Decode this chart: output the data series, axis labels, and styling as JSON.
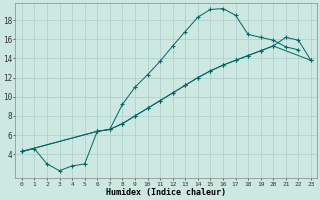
{
  "xlabel": "Humidex (Indice chaleur)",
  "background_color": "#cce8e0",
  "grid_color": "#aacccc",
  "line_color": "#006666",
  "xlim": [
    -0.5,
    23.5
  ],
  "ylim": [
    1.5,
    19.8
  ],
  "xticks": [
    0,
    1,
    2,
    3,
    4,
    5,
    6,
    7,
    8,
    9,
    10,
    11,
    12,
    13,
    14,
    15,
    16,
    17,
    18,
    19,
    20,
    21,
    22,
    23
  ],
  "yticks": [
    4,
    6,
    8,
    10,
    12,
    14,
    16,
    18
  ],
  "curve1_x": [
    0,
    1,
    2,
    3,
    4,
    5,
    6,
    7,
    8,
    9,
    10,
    11,
    12,
    13,
    14,
    15,
    16,
    17,
    18,
    19,
    20,
    21,
    22
  ],
  "curve1_y": [
    4.3,
    4.6,
    3.0,
    2.3,
    2.8,
    3.0,
    6.4,
    6.6,
    9.2,
    11.0,
    12.3,
    13.7,
    15.3,
    16.8,
    18.3,
    19.1,
    19.2,
    18.5,
    16.5,
    16.2,
    15.9,
    15.2,
    14.9
  ],
  "curve2_x": [
    0,
    6,
    7,
    8,
    9,
    10,
    11,
    12,
    13,
    14,
    15,
    16,
    17,
    18,
    19,
    20,
    23
  ],
  "curve2_y": [
    4.3,
    6.4,
    6.6,
    7.2,
    8.0,
    8.8,
    9.6,
    10.4,
    11.2,
    12.0,
    12.7,
    13.3,
    13.8,
    14.3,
    14.8,
    15.3,
    13.8
  ],
  "curve3_x": [
    0,
    6,
    7,
    8,
    9,
    10,
    11,
    12,
    13,
    14,
    15,
    16,
    17,
    18,
    19,
    20,
    21,
    22,
    23
  ],
  "curve3_y": [
    4.3,
    6.4,
    6.6,
    7.2,
    8.0,
    8.8,
    9.6,
    10.4,
    11.2,
    12.0,
    12.7,
    13.3,
    13.8,
    14.3,
    14.8,
    15.3,
    16.2,
    15.9,
    13.8
  ]
}
